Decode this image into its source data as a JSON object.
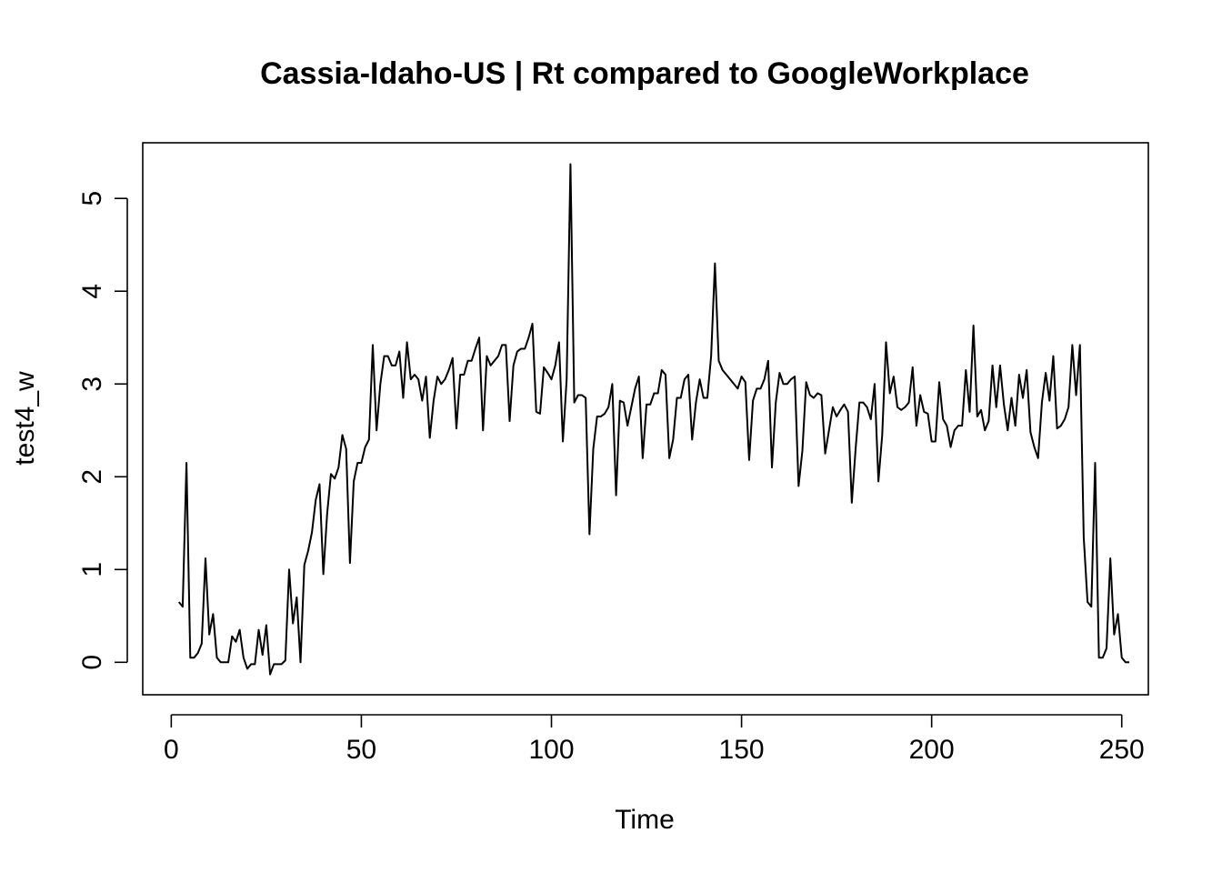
{
  "chart_data": {
    "type": "line",
    "title": "Cassia-Idaho-US | Rt compared to GoogleWorkplace",
    "xlabel": "Time",
    "ylabel": "test4_w",
    "xlim": [
      -7.5,
      257
    ],
    "ylim": [
      -0.35,
      5.6
    ],
    "xticks": [
      0,
      50,
      100,
      150,
      200,
      250
    ],
    "yticks": [
      0,
      1,
      2,
      3,
      4,
      5
    ],
    "grid": false,
    "series": [
      {
        "color": "#000000",
        "x_start": 2,
        "values": [
          0.65,
          0.6,
          2.15,
          0.05,
          0.05,
          0.1,
          0.2,
          1.12,
          0.3,
          0.52,
          0.05,
          0.0,
          0.0,
          0.0,
          0.28,
          0.22,
          0.35,
          0.05,
          -0.07,
          -0.02,
          -0.02,
          0.35,
          0.08,
          0.4,
          -0.13,
          -0.02,
          -0.02,
          -0.02,
          0.02,
          1.0,
          0.42,
          0.7,
          0.0,
          1.05,
          1.2,
          1.4,
          1.75,
          1.92,
          0.95,
          1.6,
          2.03,
          1.98,
          2.1,
          2.45,
          2.3,
          1.07,
          1.95,
          2.15,
          2.15,
          2.32,
          2.4,
          3.42,
          2.5,
          3.0,
          3.3,
          3.3,
          3.2,
          3.2,
          3.35,
          2.85,
          3.45,
          3.05,
          3.1,
          3.05,
          2.82,
          3.08,
          2.42,
          2.82,
          3.08,
          3.0,
          3.05,
          3.15,
          3.28,
          2.52,
          3.1,
          3.1,
          3.25,
          3.25,
          3.38,
          3.5,
          2.5,
          3.3,
          3.2,
          3.25,
          3.3,
          3.42,
          3.42,
          2.6,
          3.2,
          3.35,
          3.38,
          3.38,
          3.5,
          3.65,
          2.7,
          2.68,
          3.18,
          3.12,
          3.05,
          3.2,
          3.45,
          2.38,
          3.05,
          5.37,
          2.8,
          2.88,
          2.88,
          2.85,
          1.38,
          2.3,
          2.65,
          2.65,
          2.68,
          2.75,
          3.0,
          1.8,
          2.82,
          2.8,
          2.55,
          2.75,
          2.95,
          3.08,
          2.2,
          2.78,
          2.78,
          2.9,
          2.9,
          3.15,
          3.1,
          2.2,
          2.4,
          2.85,
          2.85,
          3.05,
          3.1,
          2.4,
          2.8,
          3.05,
          2.85,
          2.85,
          3.3,
          4.3,
          3.25,
          3.15,
          3.1,
          3.05,
          3.0,
          2.95,
          3.08,
          3.02,
          2.18,
          2.82,
          2.95,
          2.95,
          3.05,
          3.25,
          2.1,
          2.8,
          3.12,
          3.0,
          3.0,
          3.05,
          3.08,
          1.9,
          2.28,
          3.02,
          2.88,
          2.85,
          2.9,
          2.88,
          2.25,
          2.5,
          2.75,
          2.65,
          2.72,
          2.78,
          2.7,
          1.72,
          2.3,
          2.8,
          2.8,
          2.75,
          2.62,
          3.0,
          1.95,
          2.45,
          3.45,
          2.9,
          3.08,
          2.75,
          2.72,
          2.75,
          2.8,
          3.18,
          2.55,
          2.88,
          2.7,
          2.68,
          2.38,
          2.38,
          3.02,
          2.62,
          2.55,
          2.32,
          2.5,
          2.55,
          2.55,
          3.15,
          2.7,
          3.63,
          2.65,
          2.72,
          2.5,
          2.6,
          3.2,
          2.75,
          3.2,
          2.78,
          2.5,
          2.85,
          2.55,
          3.1,
          2.85,
          3.15,
          2.48,
          2.32,
          2.2,
          2.8,
          3.12,
          2.82,
          3.3,
          2.52,
          2.55,
          2.62,
          2.75,
          3.42,
          2.88,
          3.42,
          1.35,
          0.65,
          0.6,
          2.15,
          0.05,
          0.05,
          0.15,
          1.12,
          0.3,
          0.52,
          0.05,
          0.0,
          0.0
        ]
      }
    ]
  }
}
